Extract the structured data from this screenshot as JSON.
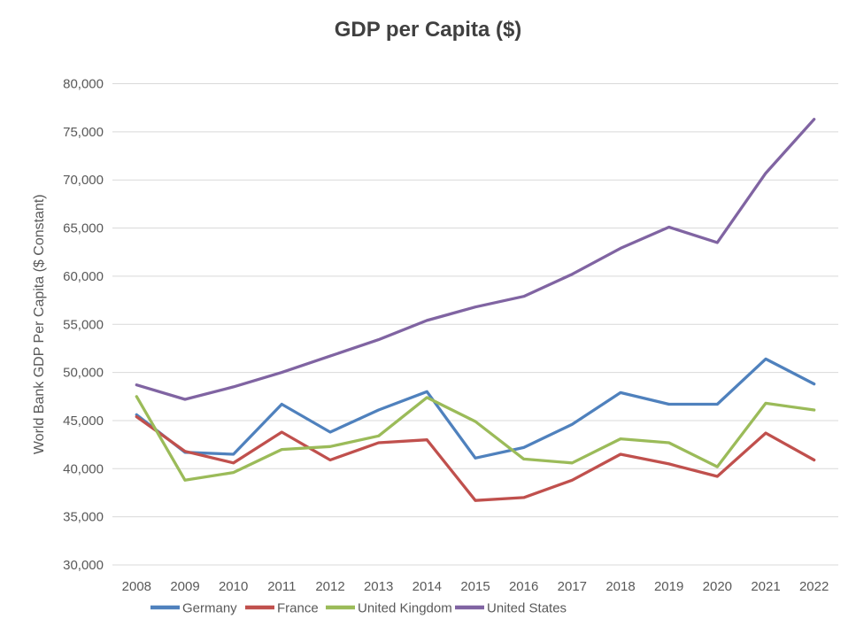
{
  "chart_data": {
    "type": "line",
    "title": "GDP per Capita ($)",
    "xlabel": "",
    "ylabel": "World Bank GDP Per Capita ($ Constant)",
    "categories": [
      "2008",
      "2009",
      "2010",
      "2011",
      "2012",
      "2013",
      "2014",
      "2015",
      "2016",
      "2017",
      "2018",
      "2019",
      "2020",
      "2021",
      "2022"
    ],
    "series": [
      {
        "name": "Germany",
        "color": "#4F81BD",
        "values": [
          45600,
          41700,
          41500,
          46700,
          43800,
          46100,
          48000,
          41100,
          42200,
          44600,
          47900,
          46700,
          46700,
          51400,
          48800
        ]
      },
      {
        "name": "France",
        "color": "#C0504D",
        "values": [
          45400,
          41800,
          40600,
          43800,
          40900,
          42700,
          43000,
          36700,
          37000,
          38800,
          41500,
          40500,
          39200,
          43700,
          40900
        ]
      },
      {
        "name": "United Kingdom",
        "color": "#9BBB59",
        "values": [
          47500,
          38800,
          39600,
          42000,
          42300,
          43400,
          47400,
          44900,
          41000,
          40600,
          43100,
          42700,
          40200,
          46800,
          46100
        ]
      },
      {
        "name": "United States",
        "color": "#8064A2",
        "values": [
          48700,
          47200,
          48500,
          50000,
          51700,
          53400,
          55400,
          56800,
          57900,
          60200,
          62900,
          65100,
          63500,
          70700,
          76300
        ]
      }
    ],
    "ylim": [
      30000,
      80000
    ],
    "ytick_step": 5000,
    "ytick_labels": [
      "30,000",
      "35,000",
      "40,000",
      "45,000",
      "50,000",
      "55,000",
      "60,000",
      "65,000",
      "70,000",
      "75,000",
      "80,000"
    ],
    "grid": true,
    "legend_position": "bottom",
    "colors": {
      "background": "#FFFFFF",
      "gridline": "#D9D9D9",
      "tick_label": "#595959",
      "axis_title": "#595959",
      "title": "#404040"
    }
  }
}
